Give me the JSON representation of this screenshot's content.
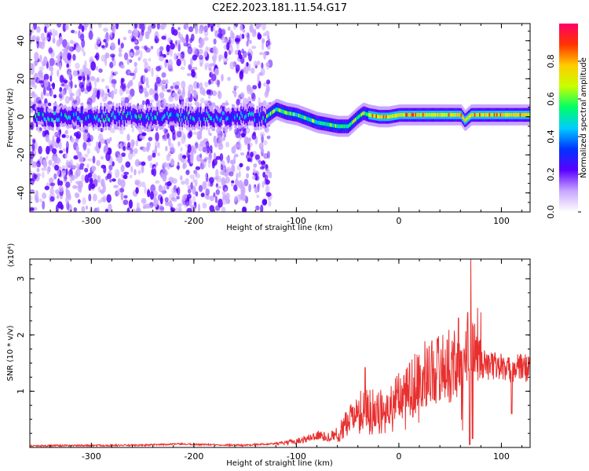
{
  "title": "C2E2.2023.181.11.54.G17",
  "colors": {
    "snr_line": "#e8302f",
    "axis": "#000000"
  },
  "chart_data": [
    {
      "type": "heatmap",
      "xlabel": "Height of straight line (km)",
      "ylabel": "Frequency (Hz)",
      "xlim": [
        -360,
        128
      ],
      "ylim": [
        -50,
        49
      ],
      "x_ticks": [
        -300,
        -200,
        -100,
        0,
        100
      ],
      "y_ticks": [
        -40,
        -20,
        0,
        20,
        40
      ],
      "x_tick_labels": [
        "-300",
        "-200",
        "-100",
        "0",
        "100"
      ],
      "y_tick_labels": [
        "-40",
        "-20",
        "0",
        "20",
        "40"
      ],
      "ridge": {
        "x": [
          -130,
          -120,
          -110,
          -100,
          -90,
          -80,
          -70,
          -60,
          -50,
          -40,
          -35,
          -30,
          -20,
          -10,
          0,
          20,
          40,
          60,
          64,
          70,
          80,
          100,
          128
        ],
        "y": [
          0,
          4,
          2,
          1,
          -1,
          -3,
          -4,
          -5,
          -5,
          0,
          2,
          1,
          0,
          0,
          1,
          1,
          1,
          1,
          -2,
          1,
          1,
          1,
          1
        ]
      },
      "colorbar": {
        "label": "Normalized spectral amplitude",
        "range": [
          0,
          1
        ],
        "ticks": [
          0.0,
          0.2,
          0.4,
          0.6,
          0.8
        ],
        "tick_labels": [
          "0.0",
          "0.2",
          "0.4",
          "0.6",
          "0.8"
        ],
        "colors": [
          "#ffffff",
          "#c9a6ff",
          "#5a00ff",
          "#0033ff",
          "#00ccff",
          "#00ff66",
          "#c8ff00",
          "#ffcc00",
          "#ff3300",
          "#ff0066"
        ]
      }
    },
    {
      "type": "line",
      "xlabel": "Height of straight line (km)",
      "ylabel": "SNR (10 * v/v)",
      "scale_label": "(x10⁴)",
      "xlim": [
        -360,
        128
      ],
      "ylim": [
        0,
        3.35
      ],
      "x_ticks": [
        -300,
        -200,
        -100,
        0,
        100
      ],
      "y_ticks": [
        1,
        2,
        3
      ],
      "x_tick_labels": [
        "-300",
        "-200",
        "-100",
        "0",
        "100"
      ],
      "y_tick_labels": [
        "1",
        "2",
        "3"
      ],
      "envelope": {
        "x": [
          -360,
          -250,
          -220,
          -150,
          -110,
          -90,
          -80,
          -70,
          -60,
          -50,
          -40,
          -35,
          -30,
          -25,
          -20,
          -10,
          0,
          10,
          20,
          30,
          40,
          50,
          55,
          60,
          62,
          65,
          68,
          70,
          72,
          75,
          80,
          90,
          100,
          105,
          110,
          115,
          128
        ],
        "y": [
          0.03,
          0.04,
          0.06,
          0.04,
          0.08,
          0.15,
          0.22,
          0.18,
          0.25,
          0.5,
          0.7,
          0.8,
          0.7,
          0.75,
          0.7,
          0.8,
          0.95,
          1.1,
          1.25,
          1.35,
          1.42,
          1.45,
          1.48,
          1.5,
          1.4,
          1.6,
          1.2,
          1.6,
          1.3,
          1.45,
          1.5,
          1.45,
          1.45,
          1.35,
          1.4,
          1.42,
          1.42
        ]
      },
      "spikes": [
        {
          "x": -33,
          "y": 1.42
        },
        {
          "x": 58,
          "y": 2.3
        },
        {
          "x": 67,
          "y": 2.4
        },
        {
          "x": 70,
          "y": 3.35
        },
        {
          "x": 75,
          "y": 1.9
        },
        {
          "x": 110,
          "y": 1.9
        }
      ],
      "dips": [
        {
          "x": 62,
          "y": 0.3
        },
        {
          "x": 69,
          "y": 0.05
        },
        {
          "x": 72,
          "y": 0.15
        },
        {
          "x": 110,
          "y": 0.6
        }
      ]
    }
  ]
}
